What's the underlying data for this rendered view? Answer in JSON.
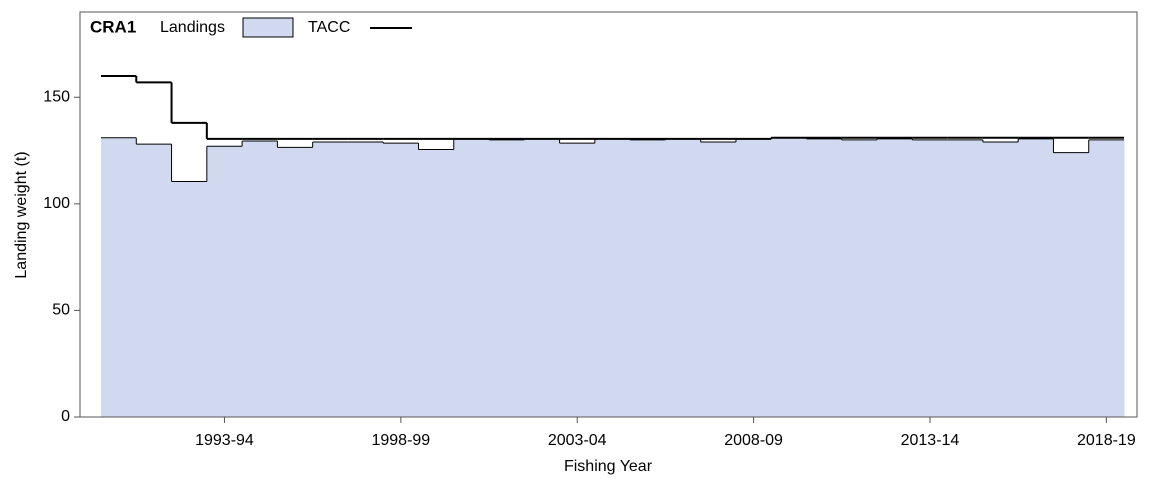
{
  "chart_data": {
    "type": "bar",
    "title": "CRA1",
    "x_label": "Fishing Year",
    "y_label": "Landing weight (t)",
    "categories": [
      null,
      null,
      null,
      "1993-94",
      null,
      null,
      null,
      null,
      "1998-99",
      null,
      null,
      null,
      null,
      "2003-04",
      null,
      null,
      null,
      null,
      "2008-09",
      null,
      null,
      null,
      null,
      "2013-14",
      null,
      null,
      null,
      null,
      "2018-19"
    ],
    "series": [
      {
        "name": "Landings",
        "type": "bar",
        "color": "#d1d9f1",
        "values": [
          131,
          128,
          110.5,
          127,
          129.5,
          126.5,
          129,
          129,
          128.5,
          125.5,
          130.5,
          130,
          130.5,
          128.5,
          130.5,
          130,
          130.5,
          129,
          130.5,
          131,
          130.5,
          130,
          130.5,
          130,
          130,
          129,
          130.5,
          124,
          130
        ]
      },
      {
        "name": "TACC",
        "type": "step",
        "color": "#000000",
        "values": [
          160,
          157,
          138,
          130.5,
          130.5,
          130.5,
          130.5,
          130.5,
          130.5,
          130.5,
          130.5,
          130.5,
          130.5,
          130.5,
          130.5,
          130.5,
          130.5,
          130.5,
          130.5,
          131,
          131,
          131,
          131,
          131,
          131,
          131,
          131,
          131,
          131
        ]
      }
    ],
    "ylim": [
      0,
      190
    ],
    "yticks": [
      0,
      50,
      100,
      150
    ],
    "legend": "upper left"
  }
}
